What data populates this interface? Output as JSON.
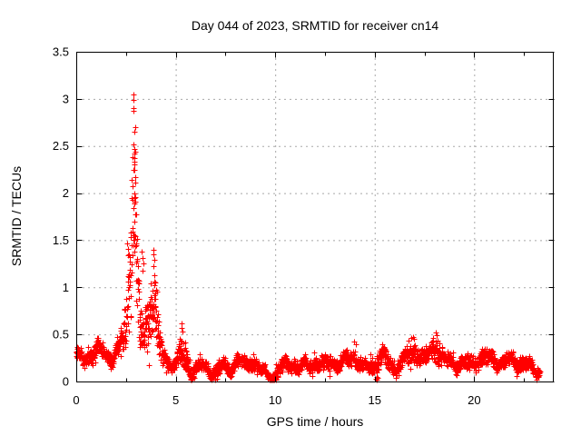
{
  "chart_data": {
    "type": "scatter",
    "title": "Day 044 of 2023, SRMTID for receiver cn14",
    "xlabel": "GPS time / hours",
    "ylabel": "SRMTID / TECUs",
    "x_axis": {
      "label": "GPS time / hours",
      "range": [
        0,
        24
      ],
      "tick_values": [
        0,
        5,
        10,
        15,
        20
      ],
      "tick_labels": [
        "0",
        "5",
        "10",
        "15",
        "20"
      ],
      "minor_tick_values": [
        2.5,
        7.5,
        12.5,
        17.5,
        22.5
      ],
      "grid_values": [
        5,
        10,
        15,
        20
      ]
    },
    "y_axis": {
      "label": "SRMTID / TECUs",
      "range": [
        0,
        3.5
      ],
      "tick_values": [
        0,
        0.5,
        1,
        1.5,
        2,
        2.5,
        3,
        3.5
      ],
      "tick_labels": [
        "0",
        "0.5",
        "1",
        "1.5",
        "2",
        "2.5",
        "3",
        "3.5"
      ],
      "grid_values": [
        0.5,
        1,
        1.5,
        2,
        2.5,
        3
      ]
    },
    "grid": {
      "on": true,
      "style": "dashed",
      "color": "#a8a8a8"
    },
    "border_color": "#000000",
    "background": "#ffffff",
    "marker": {
      "shape": "plus",
      "size": 7,
      "color": "#ff0000"
    },
    "series_name": "SRMTID",
    "sampling": {
      "points_per_hour": 120,
      "x_start": 0.0,
      "x_end": 23.3,
      "seed": 20230044
    },
    "envelope_points": [
      [
        0.0,
        0.27,
        0.1
      ],
      [
        0.4,
        0.24,
        0.08
      ],
      [
        0.8,
        0.3,
        0.09
      ],
      [
        1.2,
        0.36,
        0.11
      ],
      [
        1.5,
        0.29,
        0.09
      ],
      [
        1.8,
        0.24,
        0.08
      ],
      [
        2.1,
        0.32,
        0.12
      ],
      [
        2.35,
        0.5,
        0.22
      ],
      [
        2.55,
        0.75,
        0.35
      ],
      [
        2.7,
        1.1,
        0.55
      ],
      [
        2.85,
        1.9,
        0.9
      ],
      [
        2.95,
        1.8,
        0.95
      ],
      [
        3.05,
        1.2,
        0.6
      ],
      [
        3.2,
        0.6,
        0.3
      ],
      [
        3.4,
        0.55,
        0.25
      ],
      [
        3.6,
        0.6,
        0.3
      ],
      [
        3.8,
        0.75,
        0.4
      ],
      [
        3.95,
        0.85,
        0.45
      ],
      [
        4.1,
        0.5,
        0.28
      ],
      [
        4.3,
        0.28,
        0.12
      ],
      [
        4.6,
        0.2,
        0.08
      ],
      [
        5.0,
        0.17,
        0.07
      ],
      [
        5.25,
        0.32,
        0.2
      ],
      [
        5.45,
        0.28,
        0.18
      ],
      [
        5.7,
        0.14,
        0.1
      ],
      [
        5.9,
        0.1,
        0.08
      ],
      [
        6.2,
        0.17,
        0.07
      ],
      [
        6.6,
        0.15,
        0.07
      ],
      [
        7.0,
        0.1,
        0.08
      ],
      [
        7.3,
        0.17,
        0.08
      ],
      [
        7.7,
        0.14,
        0.06
      ],
      [
        8.1,
        0.22,
        0.09
      ],
      [
        8.5,
        0.18,
        0.08
      ],
      [
        8.9,
        0.21,
        0.08
      ],
      [
        9.2,
        0.14,
        0.07
      ],
      [
        9.6,
        0.07,
        0.05
      ],
      [
        10.0,
        0.08,
        0.06
      ],
      [
        10.4,
        0.18,
        0.08
      ],
      [
        10.8,
        0.2,
        0.08
      ],
      [
        11.2,
        0.14,
        0.07
      ],
      [
        11.6,
        0.18,
        0.08
      ],
      [
        12.0,
        0.2,
        0.08
      ],
      [
        12.4,
        0.16,
        0.08
      ],
      [
        12.8,
        0.22,
        0.09
      ],
      [
        13.2,
        0.17,
        0.08
      ],
      [
        13.6,
        0.26,
        0.1
      ],
      [
        14.0,
        0.26,
        0.1
      ],
      [
        14.4,
        0.14,
        0.08
      ],
      [
        14.8,
        0.18,
        0.1
      ],
      [
        15.1,
        0.22,
        0.14
      ],
      [
        15.4,
        0.26,
        0.1
      ],
      [
        15.8,
        0.18,
        0.08
      ],
      [
        16.2,
        0.17,
        0.08
      ],
      [
        16.6,
        0.27,
        0.11
      ],
      [
        17.0,
        0.31,
        0.12
      ],
      [
        17.4,
        0.23,
        0.1
      ],
      [
        17.8,
        0.32,
        0.12
      ],
      [
        18.1,
        0.36,
        0.13
      ],
      [
        18.4,
        0.24,
        0.1
      ],
      [
        18.8,
        0.21,
        0.08
      ],
      [
        19.2,
        0.19,
        0.08
      ],
      [
        19.6,
        0.18,
        0.08
      ],
      [
        20.0,
        0.21,
        0.08
      ],
      [
        20.4,
        0.25,
        0.09
      ],
      [
        20.8,
        0.24,
        0.09
      ],
      [
        21.2,
        0.21,
        0.08
      ],
      [
        21.6,
        0.21,
        0.08
      ],
      [
        22.0,
        0.23,
        0.08
      ],
      [
        22.4,
        0.19,
        0.08
      ],
      [
        22.8,
        0.16,
        0.07
      ],
      [
        23.1,
        0.11,
        0.06
      ],
      [
        23.3,
        0.12,
        0.05
      ]
    ],
    "peak": {
      "x": 2.87,
      "y": 3.05
    },
    "highlight_points": [
      [
        2.86,
        3.05
      ],
      [
        2.87,
        2.99
      ],
      [
        2.87,
        2.9
      ],
      [
        2.95,
        2.7
      ],
      [
        2.89,
        2.52
      ],
      [
        2.9,
        2.47
      ],
      [
        2.9,
        2.42
      ],
      [
        2.92,
        2.37
      ],
      [
        2.91,
        2.3
      ],
      [
        2.93,
        2.25
      ],
      [
        2.96,
        2.17
      ],
      [
        2.9,
        2.0
      ],
      [
        2.92,
        1.95
      ],
      [
        2.94,
        1.89
      ],
      [
        2.97,
        1.77
      ],
      [
        2.88,
        1.55
      ],
      [
        2.91,
        1.5
      ],
      [
        2.95,
        1.44
      ],
      [
        2.56,
        1.47
      ],
      [
        2.58,
        1.41
      ],
      [
        2.61,
        1.34
      ],
      [
        3.3,
        1.38
      ],
      [
        3.33,
        1.31
      ],
      [
        3.36,
        1.25
      ],
      [
        3.34,
        1.18
      ],
      [
        3.87,
        1.4
      ],
      [
        3.9,
        1.35
      ],
      [
        3.92,
        1.29
      ],
      [
        3.89,
        1.22
      ],
      [
        3.94,
        1.13
      ],
      [
        3.96,
        1.05
      ],
      [
        5.28,
        0.62
      ],
      [
        5.31,
        0.57
      ],
      [
        5.33,
        0.53
      ],
      [
        18.08,
        0.52
      ],
      [
        18.12,
        0.49
      ],
      [
        17.95,
        0.46
      ],
      [
        16.95,
        0.47
      ],
      [
        14.05,
        0.4
      ],
      [
        13.95,
        0.42
      ]
    ],
    "near_zero_points": [
      [
        5.78,
        0.02
      ],
      [
        5.84,
        0.03
      ],
      [
        7.0,
        0.02
      ],
      [
        7.07,
        0.03
      ],
      [
        9.96,
        0.02
      ],
      [
        10.02,
        0.03
      ],
      [
        10.05,
        0.02
      ],
      [
        15.07,
        0.03
      ],
      [
        15.09,
        0.05
      ],
      [
        15.11,
        0.02
      ],
      [
        15.13,
        0.04
      ],
      [
        23.12,
        0.05
      ]
    ]
  }
}
